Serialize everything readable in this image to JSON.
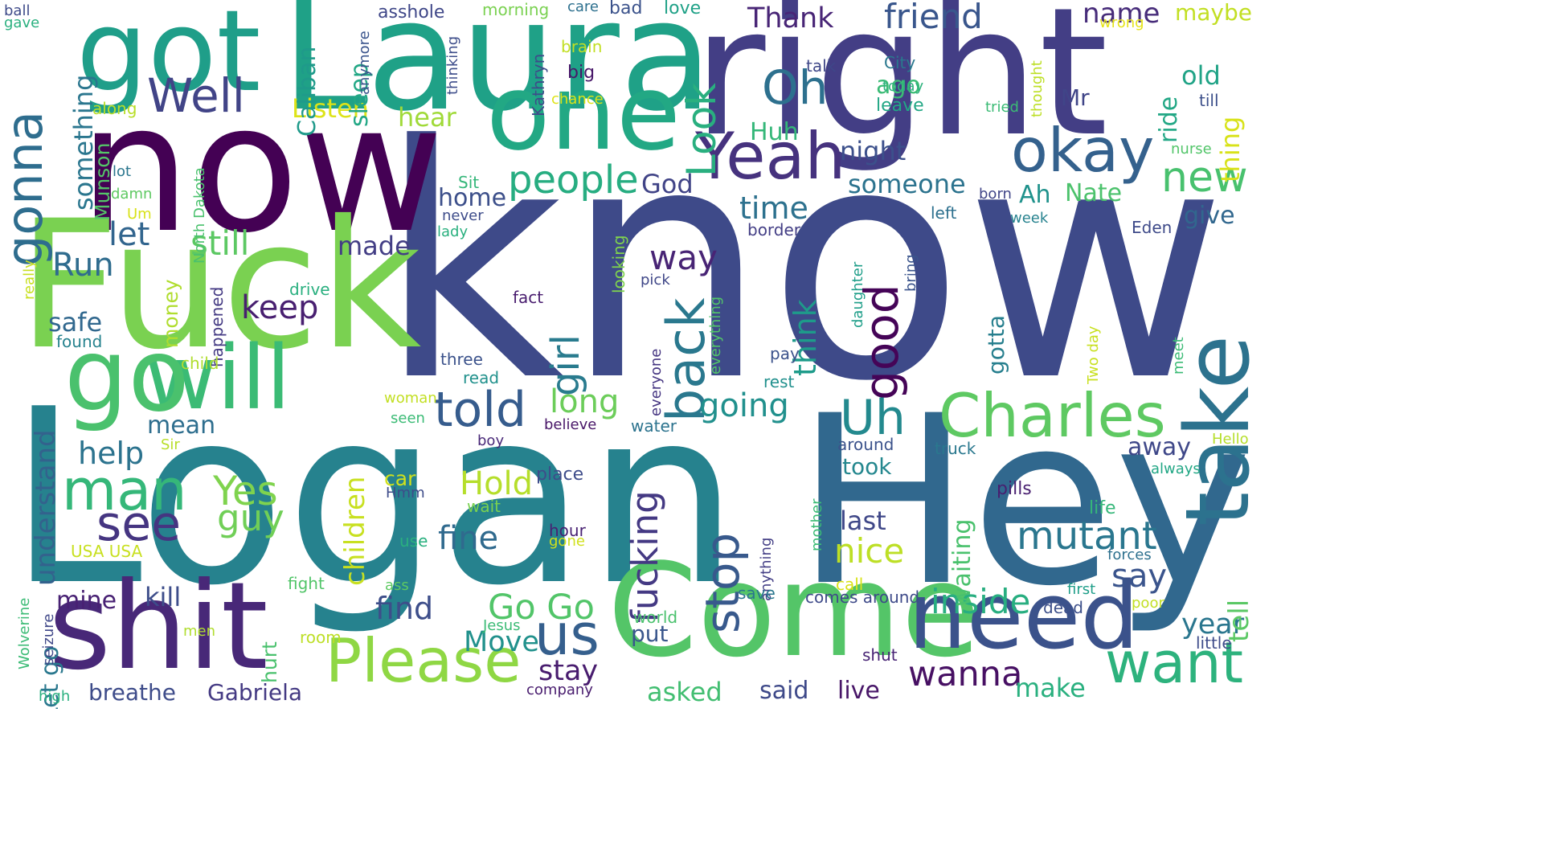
{
  "words": [
    {
      "text": "know",
      "color": "#3e4a89"
    },
    {
      "text": "Logan",
      "color": "#26828e"
    },
    {
      "text": "right",
      "color": "#433e85"
    },
    {
      "text": "now",
      "color": "#440154"
    },
    {
      "text": "Laura",
      "color": "#1fa187"
    },
    {
      "text": "Fuck",
      "color": "#7ad151"
    },
    {
      "text": "Hey",
      "color": "#31688e"
    },
    {
      "text": "Come",
      "color": "#54c568"
    },
    {
      "text": "got",
      "color": "#1f9e89"
    },
    {
      "text": "shit",
      "color": "#482878"
    },
    {
      "text": "will",
      "color": "#3bbb75"
    },
    {
      "text": "go",
      "color": "#4ac16d"
    },
    {
      "text": "one",
      "color": "#22a884"
    },
    {
      "text": "need",
      "color": "#3b528b"
    },
    {
      "text": "take",
      "color": "#2c728e"
    },
    {
      "text": "Charles",
      "color": "#5ec962"
    },
    {
      "text": "Please",
      "color": "#8fd744"
    },
    {
      "text": "okay",
      "color": "#34618d"
    },
    {
      "text": "Yeah",
      "color": "#46327e"
    },
    {
      "text": "want",
      "color": "#2db27d"
    },
    {
      "text": "us",
      "color": "#355f8d"
    },
    {
      "text": "told",
      "color": "#365c8d"
    },
    {
      "text": "man",
      "color": "#35b779"
    },
    {
      "text": "back",
      "color": "#2a788e"
    },
    {
      "text": "good",
      "color": "#450457"
    },
    {
      "text": "gonna",
      "color": "#2e6d8e"
    },
    {
      "text": "Uh",
      "color": "#23898e"
    },
    {
      "text": "stop",
      "color": "#38598c"
    },
    {
      "text": "see",
      "color": "#453581"
    },
    {
      "text": "Well",
      "color": "#414487"
    },
    {
      "text": "Look",
      "color": "#29af7f"
    },
    {
      "text": "Oh",
      "color": "#2d708e"
    },
    {
      "text": "girl",
      "color": "#297b8e"
    },
    {
      "text": "mutant",
      "color": "#2a768e"
    },
    {
      "text": "fucking",
      "color": "#443983"
    },
    {
      "text": "Yes",
      "color": "#7fd34e"
    },
    {
      "text": "people",
      "color": "#27ad81"
    },
    {
      "text": "friend",
      "color": "#39568c"
    },
    {
      "text": "new",
      "color": "#48c16e"
    },
    {
      "text": "wanna",
      "color": "#471063"
    },
    {
      "text": "Go Go",
      "color": "#52c569"
    },
    {
      "text": "guy",
      "color": "#70cf57"
    },
    {
      "text": "Hold",
      "color": "#b5de2b"
    },
    {
      "text": "fine",
      "color": "#306a8e"
    },
    {
      "text": "long",
      "color": "#6ccd5a"
    },
    {
      "text": "going",
      "color": "#21908d"
    },
    {
      "text": "inside",
      "color": "#28ae80"
    },
    {
      "text": "nice",
      "color": "#bddf26"
    },
    {
      "text": "still",
      "color": "#5cc863"
    },
    {
      "text": "find",
      "color": "#3d4e8a"
    },
    {
      "text": "Run",
      "color": "#2f6c8e"
    },
    {
      "text": "let",
      "color": "#32658e"
    },
    {
      "text": "keep",
      "color": "#481f70"
    },
    {
      "text": "way",
      "color": "#482475"
    },
    {
      "text": "say",
      "color": "#3a548c"
    },
    {
      "text": "time",
      "color": "#2d718e"
    },
    {
      "text": "help",
      "color": "#2c738e"
    },
    {
      "text": "Thank",
      "color": "#482576"
    },
    {
      "text": "think",
      "color": "#1e9b8a"
    },
    {
      "text": "stay",
      "color": "#481c6e"
    },
    {
      "text": "Move",
      "color": "#21918c"
    },
    {
      "text": "year",
      "color": "#2a768e"
    },
    {
      "text": "name",
      "color": "#472c7a"
    },
    {
      "text": "tell",
      "color": "#5ac864"
    },
    {
      "text": "understand",
      "color": "#33628d"
    },
    {
      "text": "children",
      "color": "#c8e020"
    },
    {
      "text": "made",
      "color": "#433e85"
    },
    {
      "text": "make",
      "color": "#2ab07f"
    },
    {
      "text": "said",
      "color": "#3e4989"
    },
    {
      "text": "last",
      "color": "#3f4788"
    },
    {
      "text": "put",
      "color": "#39568c"
    },
    {
      "text": "home",
      "color": "#3c4f8a"
    },
    {
      "text": "give",
      "color": "#31678e"
    },
    {
      "text": "maybe",
      "color": "#c2df23"
    },
    {
      "text": "night",
      "color": "#3c508b"
    },
    {
      "text": "someone",
      "color": "#2c738e"
    },
    {
      "text": "Listen",
      "color": "#dde318"
    },
    {
      "text": "gotta",
      "color": "#277f8e"
    },
    {
      "text": "safe",
      "color": "#31688e"
    },
    {
      "text": "kill",
      "color": "#3d4d8a"
    },
    {
      "text": "mine",
      "color": "#482173"
    },
    {
      "text": "waiting",
      "color": "#4ac16d"
    },
    {
      "text": "breathe",
      "color": "#3e4c8a"
    },
    {
      "text": "Gabriela",
      "color": "#443a83"
    },
    {
      "text": "live",
      "color": "#481668"
    },
    {
      "text": "Let go",
      "color": "#2a788e"
    },
    {
      "text": "something",
      "color": "#2a768e"
    },
    {
      "text": "sleep",
      "color": "#22a785"
    },
    {
      "text": "mean",
      "color": "#2e6e8e"
    },
    {
      "text": "away",
      "color": "#3f4889"
    },
    {
      "text": "God",
      "color": "#414487"
    },
    {
      "text": "Ah",
      "color": "#20928c"
    },
    {
      "text": "Nate",
      "color": "#4cc26c"
    },
    {
      "text": "Huh",
      "color": "#35b779"
    },
    {
      "text": "Caliban",
      "color": "#1f9a8a"
    },
    {
      "text": "ago",
      "color": "#3bbb75"
    },
    {
      "text": "hear",
      "color": "#a0da39"
    },
    {
      "text": "thing",
      "color": "#d8e219"
    },
    {
      "text": "old",
      "color": "#20a386"
    },
    {
      "text": "ride",
      "color": "#22a785"
    },
    {
      "text": "Munson",
      "color": "#54c568"
    },
    {
      "text": "money",
      "color": "#b0dd2f"
    },
    {
      "text": "took",
      "color": "#24878e"
    },
    {
      "text": "hurt",
      "color": "#4ac16d"
    },
    {
      "text": "asked",
      "color": "#42be71"
    },
    {
      "text": "Mr",
      "color": "#404588"
    },
    {
      "text": "car",
      "color": "#d0e11c"
    },
    {
      "text": "asshole",
      "color": "#3f4788"
    },
    {
      "text": "morning",
      "color": "#7ad151"
    },
    {
      "text": "care",
      "color": "#2d708e"
    },
    {
      "text": "bad",
      "color": "#3b528b"
    },
    {
      "text": "love",
      "color": "#1fa187"
    },
    {
      "text": "big",
      "color": "#481769"
    },
    {
      "text": "brain",
      "color": "#c2df23"
    },
    {
      "text": "Kathryn",
      "color": "#3e4c8a"
    },
    {
      "text": "chance",
      "color": "#dde318"
    },
    {
      "text": "thinking",
      "color": "#3d4d8a"
    },
    {
      "text": "anymore",
      "color": "#3a548c"
    },
    {
      "text": "City",
      "color": "#2a788e"
    },
    {
      "text": "talk",
      "color": "#3f4788"
    },
    {
      "text": "today",
      "color": "#2db27d"
    },
    {
      "text": "leave",
      "color": "#22a785"
    },
    {
      "text": "tried",
      "color": "#3bbb75"
    },
    {
      "text": "thought",
      "color": "#bddf26"
    },
    {
      "text": "wrong",
      "color": "#e5e419"
    },
    {
      "text": "till",
      "color": "#3c4f8a"
    },
    {
      "text": "nurse",
      "color": "#52c569"
    },
    {
      "text": "along",
      "color": "#b8de29"
    },
    {
      "text": "ball",
      "color": "#3e4a89"
    },
    {
      "text": "gave",
      "color": "#2ab07f"
    },
    {
      "text": "lot",
      "color": "#2a768e"
    },
    {
      "text": "damn",
      "color": "#5ec962"
    },
    {
      "text": "Um",
      "color": "#d8e219"
    },
    {
      "text": "North Dakota",
      "color": "#4ac16d"
    },
    {
      "text": "really",
      "color": "#c8e020"
    },
    {
      "text": "Sit",
      "color": "#34b679"
    },
    {
      "text": "never",
      "color": "#3e4c8a"
    },
    {
      "text": "lady",
      "color": "#2ab07f"
    },
    {
      "text": "looking",
      "color": "#7fd34e"
    },
    {
      "text": "pick",
      "color": "#3f4788"
    },
    {
      "text": "fact",
      "color": "#481c6e"
    },
    {
      "text": "drive",
      "color": "#29af7f"
    },
    {
      "text": "happened",
      "color": "#443a83"
    },
    {
      "text": "found",
      "color": "#26828e"
    },
    {
      "text": "child",
      "color": "#b0dd2f"
    },
    {
      "text": "three",
      "color": "#3b528b"
    },
    {
      "text": "read",
      "color": "#21918c"
    },
    {
      "text": "everyone",
      "color": "#453581"
    },
    {
      "text": "everything",
      "color": "#52c569"
    },
    {
      "text": "believe",
      "color": "#481668"
    },
    {
      "text": "water",
      "color": "#2c738e"
    },
    {
      "text": "daughter",
      "color": "#1f9e89"
    },
    {
      "text": "bring",
      "color": "#3a548c"
    },
    {
      "text": "pay",
      "color": "#3b528b"
    },
    {
      "text": "rest",
      "color": "#21908d"
    },
    {
      "text": "born",
      "color": "#404588"
    },
    {
      "text": "week",
      "color": "#26828e"
    },
    {
      "text": "left",
      "color": "#2d708e"
    },
    {
      "text": "border",
      "color": "#433e85"
    },
    {
      "text": "Eden",
      "color": "#3e4a89"
    },
    {
      "text": "Two day",
      "color": "#c8e020"
    },
    {
      "text": "meet",
      "color": "#3bbb75"
    },
    {
      "text": "Hello",
      "color": "#b5de2b"
    },
    {
      "text": "always",
      "color": "#22a785"
    },
    {
      "text": "woman",
      "color": "#c2df23"
    },
    {
      "text": "seen",
      "color": "#3bbb75"
    },
    {
      "text": "Sir",
      "color": "#b8de29"
    },
    {
      "text": "boy",
      "color": "#482878"
    },
    {
      "text": "around",
      "color": "#3b528b"
    },
    {
      "text": "truck",
      "color": "#2a788e"
    },
    {
      "text": "place",
      "color": "#3e4c8a"
    },
    {
      "text": "Hmm",
      "color": "#3e4c8a"
    },
    {
      "text": "wait",
      "color": "#7ad151"
    },
    {
      "text": "pills",
      "color": "#481f70"
    },
    {
      "text": "life",
      "color": "#35b779"
    },
    {
      "text": "mother",
      "color": "#3bbb75"
    },
    {
      "text": "anything",
      "color": "#433e85"
    },
    {
      "text": "forces",
      "color": "#2d708e"
    },
    {
      "text": "first",
      "color": "#1f9e89"
    },
    {
      "text": "poor",
      "color": "#c2df23"
    },
    {
      "text": "hour",
      "color": "#482173"
    },
    {
      "text": "gone",
      "color": "#d0e11c"
    },
    {
      "text": "use",
      "color": "#2ab07f"
    },
    {
      "text": "USA USA",
      "color": "#c8e020"
    },
    {
      "text": "fight",
      "color": "#52c569"
    },
    {
      "text": "ass",
      "color": "#5ec962"
    },
    {
      "text": "call",
      "color": "#d8e219"
    },
    {
      "text": "save",
      "color": "#2a768e"
    },
    {
      "text": "comes around",
      "color": "#3e4a89"
    },
    {
      "text": "dead",
      "color": "#3c4f8a"
    },
    {
      "text": "world",
      "color": "#4ac16d"
    },
    {
      "text": "Jesus",
      "color": "#3bbb75"
    },
    {
      "text": "shut",
      "color": "#482475"
    },
    {
      "text": "little",
      "color": "#3e4c8a"
    },
    {
      "text": "Wolverine",
      "color": "#3bbb75"
    },
    {
      "text": "seizure",
      "color": "#3f4788"
    },
    {
      "text": "men",
      "color": "#b0dd2f"
    },
    {
      "text": "room",
      "color": "#bddf26"
    },
    {
      "text": "company",
      "color": "#481c6e"
    },
    {
      "text": "high",
      "color": "#2ab07f"
    }
  ]
}
